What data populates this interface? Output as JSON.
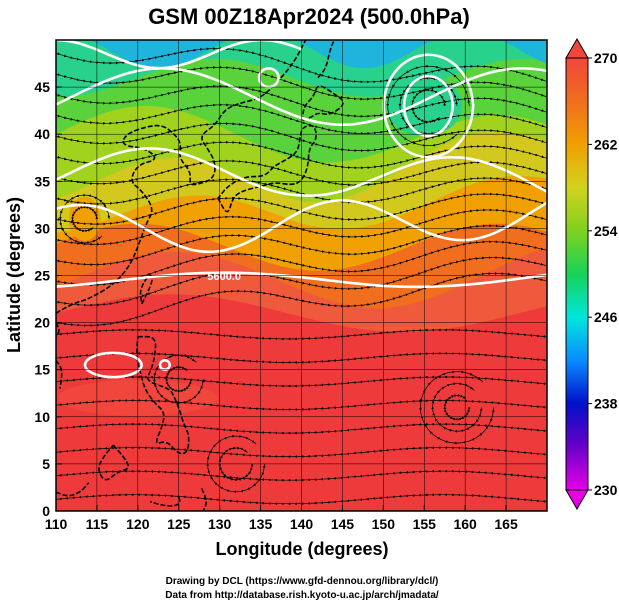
{
  "figure": {
    "title": "GSM 00Z18Apr2024 (500.0hPa)",
    "credit_line1": "Drawing by DCL (https://www.gfd-dennou.org/library/dcl/)",
    "credit_line2": "Data from http://database.rish.kyoto-u.ac.jp/arch/jmadata/"
  },
  "map": {
    "xlabel": "Longitude (degrees)",
    "ylabel": "Latitude  (degrees)",
    "lon_range": [
      110,
      170
    ],
    "lat_range": [
      0,
      50
    ],
    "lon_ticks": [
      "110",
      "115",
      "120",
      "125",
      "130",
      "135",
      "140",
      "145",
      "150",
      "155",
      "160",
      "165"
    ],
    "lat_ticks": [
      "0",
      "5",
      "10",
      "15",
      "20",
      "25",
      "30",
      "35",
      "40",
      "45"
    ],
    "contour_label": "5600.0",
    "contour_label_pos": [
      128.5,
      24.5
    ],
    "field": "temperature",
    "overlay": "streamlines"
  },
  "colorbar": {
    "range": [
      230,
      270
    ],
    "tick_labels": [
      "230",
      "238",
      "246",
      "254",
      "262",
      "270"
    ],
    "colors": [
      "#e600e6",
      "#6a00c8",
      "#0010c8",
      "#0a8cff",
      "#00e6dc",
      "#18d25a",
      "#7ed21e",
      "#d2d21e",
      "#f0a000",
      "#f06e1e",
      "#f0463c"
    ]
  }
}
